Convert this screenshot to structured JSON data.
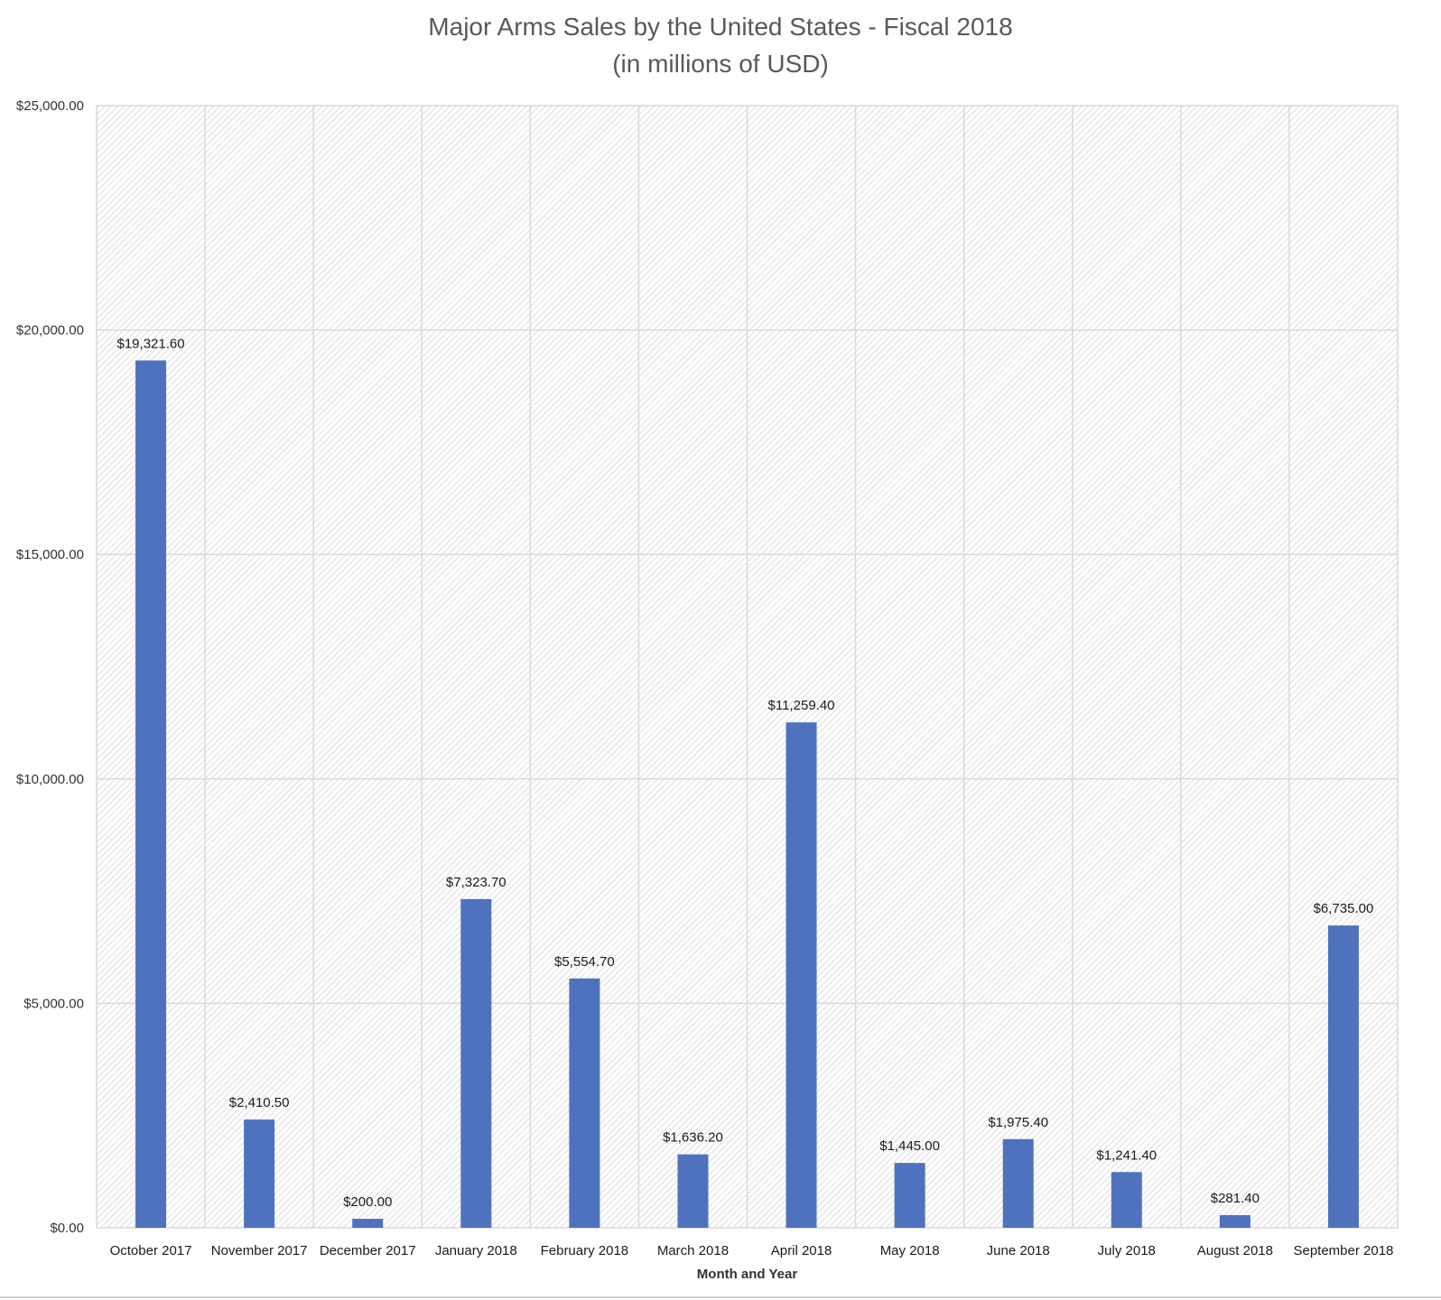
{
  "chart_data": {
    "type": "bar",
    "title": "Major Arms Sales by the United States - Fiscal 2018",
    "subtitle": "(in millions of USD)",
    "xlabel": "Month and Year",
    "ylabel": "",
    "categories": [
      "October 2017",
      "November 2017",
      "December 2017",
      "January 2018",
      "February 2018",
      "March 2018",
      "April 2018",
      "May 2018",
      "June 2018",
      "July 2018",
      "August 2018",
      "September 2018"
    ],
    "values": [
      19321.6,
      2410.5,
      200.0,
      7323.7,
      5554.7,
      1636.2,
      11259.4,
      1445.0,
      1975.4,
      1241.4,
      281.4,
      6735.0
    ],
    "data_labels": [
      "$19,321.60",
      "$2,410.50",
      "$200.00",
      "$7,323.70",
      "$5,554.70",
      "$1,636.20",
      "$11,259.40",
      "$1,445.00",
      "$1,975.40",
      "$1,241.40",
      "$281.40",
      "$6,735.00"
    ],
    "ylim": [
      0,
      25000
    ],
    "yticks": [
      0,
      5000,
      10000,
      15000,
      20000,
      25000
    ],
    "ytick_labels": [
      "$0.00",
      "$5,000.00",
      "$10,000.00",
      "$15,000.00",
      "$20,000.00",
      "$25,000.00"
    ],
    "grid": true,
    "legend": "none",
    "bar_color": "#4f72be",
    "background_pattern": "diagonal-hatch"
  }
}
